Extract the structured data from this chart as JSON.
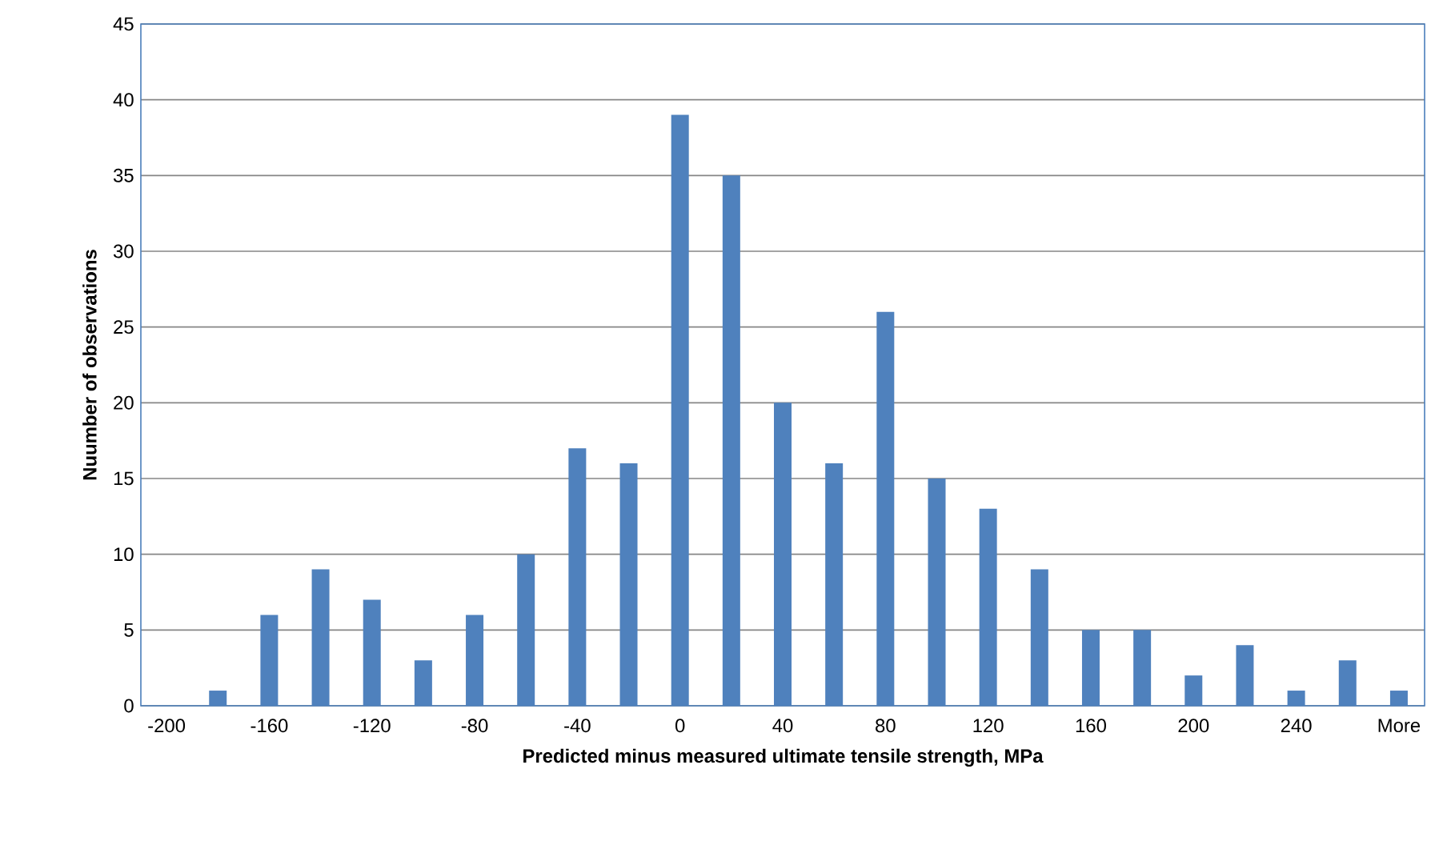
{
  "chart_data": {
    "type": "bar",
    "xlabel": "Predicted minus measured ultimate tensile strength, MPa",
    "ylabel": "Nuumber of observations",
    "categories": [
      "-200",
      null,
      "-160",
      null,
      "-120",
      null,
      "-80",
      null,
      "-40",
      null,
      "0",
      null,
      "40",
      null,
      "80",
      null,
      "120",
      null,
      "160",
      null,
      "200",
      null,
      "240",
      null,
      "More"
    ],
    "values": [
      0,
      1,
      6,
      9,
      7,
      3,
      6,
      10,
      17,
      16,
      39,
      35,
      20,
      16,
      26,
      15,
      13,
      9,
      5,
      5,
      2,
      4,
      1,
      3,
      1
    ],
    "color": "#4f81bd",
    "ylim": [
      0,
      45
    ],
    "yticks": [
      0,
      5,
      10,
      15,
      20,
      25,
      30,
      35,
      40,
      45
    ],
    "grid": "y"
  }
}
